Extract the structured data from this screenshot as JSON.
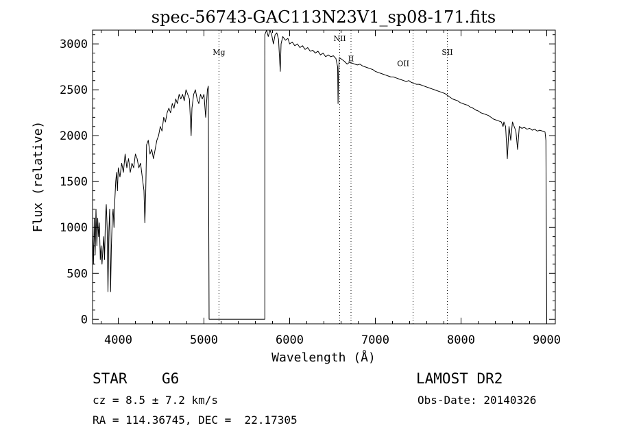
{
  "chart_data": {
    "type": "line",
    "title": "spec-56743-GAC113N23V1_sp08-171.fits",
    "xlabel": "Wavelength (Å)",
    "ylabel": "Flux (relative)",
    "xlim": [
      3700,
      9100
    ],
    "ylim": [
      -50,
      3150
    ],
    "xticks": [
      4000,
      5000,
      6000,
      7000,
      8000,
      9000
    ],
    "yticks": [
      0,
      500,
      1000,
      1500,
      2000,
      2500,
      3000
    ],
    "grid": false,
    "series": [
      {
        "points": [
          [
            3700,
            0
          ],
          [
            3700,
            1000
          ],
          [
            3710,
            600
          ],
          [
            3720,
            1100
          ],
          [
            3730,
            700
          ],
          [
            3740,
            1200
          ],
          [
            3750,
            800
          ],
          [
            3760,
            1100
          ],
          [
            3770,
            900
          ],
          [
            3780,
            1050
          ],
          [
            3790,
            650
          ],
          [
            3800,
            800
          ],
          [
            3810,
            600
          ],
          [
            3820,
            750
          ],
          [
            3830,
            900
          ],
          [
            3840,
            650
          ],
          [
            3850,
            1100
          ],
          [
            3860,
            1250
          ],
          [
            3870,
            1000
          ],
          [
            3880,
            300
          ],
          [
            3890,
            950
          ],
          [
            3900,
            1200
          ],
          [
            3910,
            300
          ],
          [
            3920,
            800
          ],
          [
            3930,
            1100
          ],
          [
            3940,
            1200
          ],
          [
            3950,
            1000
          ],
          [
            3960,
            1300
          ],
          [
            3970,
            1500
          ],
          [
            3980,
            1600
          ],
          [
            3990,
            1400
          ],
          [
            4000,
            1650
          ],
          [
            4020,
            1550
          ],
          [
            4040,
            1700
          ],
          [
            4060,
            1600
          ],
          [
            4080,
            1800
          ],
          [
            4100,
            1650
          ],
          [
            4120,
            1750
          ],
          [
            4140,
            1600
          ],
          [
            4160,
            1700
          ],
          [
            4180,
            1650
          ],
          [
            4200,
            1800
          ],
          [
            4220,
            1750
          ],
          [
            4240,
            1650
          ],
          [
            4260,
            1700
          ],
          [
            4280,
            1550
          ],
          [
            4300,
            1400
          ],
          [
            4310,
            1050
          ],
          [
            4320,
            1350
          ],
          [
            4330,
            1900
          ],
          [
            4350,
            1950
          ],
          [
            4370,
            1800
          ],
          [
            4390,
            1850
          ],
          [
            4410,
            1750
          ],
          [
            4430,
            1850
          ],
          [
            4450,
            1950
          ],
          [
            4470,
            2000
          ],
          [
            4490,
            2100
          ],
          [
            4510,
            2050
          ],
          [
            4530,
            2200
          ],
          [
            4550,
            2150
          ],
          [
            4570,
            2250
          ],
          [
            4590,
            2300
          ],
          [
            4610,
            2250
          ],
          [
            4630,
            2350
          ],
          [
            4650,
            2300
          ],
          [
            4670,
            2400
          ],
          [
            4690,
            2350
          ],
          [
            4710,
            2450
          ],
          [
            4730,
            2400
          ],
          [
            4750,
            2450
          ],
          [
            4770,
            2380
          ],
          [
            4790,
            2500
          ],
          [
            4810,
            2450
          ],
          [
            4830,
            2400
          ],
          [
            4850,
            2000
          ],
          [
            4860,
            2300
          ],
          [
            4880,
            2450
          ],
          [
            4900,
            2500
          ],
          [
            4920,
            2400
          ],
          [
            4940,
            2350
          ],
          [
            4960,
            2450
          ],
          [
            4980,
            2400
          ],
          [
            5000,
            2450
          ],
          [
            5020,
            2200
          ],
          [
            5040,
            2500
          ],
          [
            5050,
            2540
          ],
          [
            5060,
            0
          ],
          [
            5710,
            0
          ],
          [
            5710,
            3100
          ],
          [
            5730,
            3150
          ],
          [
            5750,
            3080
          ],
          [
            5770,
            3150
          ],
          [
            5790,
            3100
          ],
          [
            5810,
            3000
          ],
          [
            5830,
            3100
          ],
          [
            5850,
            3120
          ],
          [
            5870,
            3050
          ],
          [
            5890,
            2700
          ],
          [
            5900,
            3000
          ],
          [
            5920,
            3080
          ],
          [
            5950,
            3040
          ],
          [
            5980,
            3060
          ],
          [
            6000,
            3000
          ],
          [
            6030,
            3020
          ],
          [
            6060,
            2980
          ],
          [
            6090,
            3000
          ],
          [
            6120,
            2960
          ],
          [
            6150,
            2980
          ],
          [
            6180,
            2940
          ],
          [
            6210,
            2960
          ],
          [
            6240,
            2920
          ],
          [
            6270,
            2930
          ],
          [
            6300,
            2900
          ],
          [
            6330,
            2920
          ],
          [
            6360,
            2880
          ],
          [
            6390,
            2900
          ],
          [
            6420,
            2860
          ],
          [
            6450,
            2880
          ],
          [
            6480,
            2860
          ],
          [
            6510,
            2870
          ],
          [
            6540,
            2840
          ],
          [
            6560,
            2750
          ],
          [
            6565,
            2350
          ],
          [
            6570,
            2700
          ],
          [
            6580,
            2850
          ],
          [
            6610,
            2830
          ],
          [
            6640,
            2810
          ],
          [
            6670,
            2780
          ],
          [
            6700,
            2800
          ],
          [
            6730,
            2790
          ],
          [
            6760,
            2780
          ],
          [
            6790,
            2770
          ],
          [
            6820,
            2780
          ],
          [
            6850,
            2760
          ],
          [
            6880,
            2750
          ],
          [
            6910,
            2740
          ],
          [
            6940,
            2730
          ],
          [
            6970,
            2720
          ],
          [
            7000,
            2700
          ],
          [
            7030,
            2690
          ],
          [
            7060,
            2680
          ],
          [
            7090,
            2670
          ],
          [
            7120,
            2660
          ],
          [
            7150,
            2650
          ],
          [
            7180,
            2640
          ],
          [
            7210,
            2640
          ],
          [
            7240,
            2630
          ],
          [
            7270,
            2620
          ],
          [
            7300,
            2610
          ],
          [
            7330,
            2600
          ],
          [
            7360,
            2590
          ],
          [
            7390,
            2600
          ],
          [
            7420,
            2580
          ],
          [
            7450,
            2570
          ],
          [
            7480,
            2560
          ],
          [
            7510,
            2560
          ],
          [
            7540,
            2550
          ],
          [
            7570,
            2540
          ],
          [
            7600,
            2530
          ],
          [
            7630,
            2520
          ],
          [
            7660,
            2510
          ],
          [
            7690,
            2500
          ],
          [
            7720,
            2490
          ],
          [
            7750,
            2480
          ],
          [
            7780,
            2470
          ],
          [
            7810,
            2460
          ],
          [
            7840,
            2440
          ],
          [
            7870,
            2420
          ],
          [
            7900,
            2400
          ],
          [
            7930,
            2390
          ],
          [
            7960,
            2380
          ],
          [
            7990,
            2360
          ],
          [
            8020,
            2350
          ],
          [
            8050,
            2340
          ],
          [
            8080,
            2330
          ],
          [
            8110,
            2310
          ],
          [
            8140,
            2300
          ],
          [
            8170,
            2280
          ],
          [
            8200,
            2270
          ],
          [
            8230,
            2250
          ],
          [
            8260,
            2240
          ],
          [
            8290,
            2230
          ],
          [
            8320,
            2220
          ],
          [
            8350,
            2200
          ],
          [
            8380,
            2180
          ],
          [
            8410,
            2170
          ],
          [
            8440,
            2160
          ],
          [
            8470,
            2150
          ],
          [
            8490,
            2100
          ],
          [
            8500,
            2150
          ],
          [
            8520,
            2100
          ],
          [
            8540,
            1750
          ],
          [
            8560,
            2100
          ],
          [
            8580,
            1950
          ],
          [
            8600,
            2150
          ],
          [
            8620,
            2100
          ],
          [
            8640,
            2050
          ],
          [
            8660,
            1850
          ],
          [
            8680,
            2100
          ],
          [
            8710,
            2080
          ],
          [
            8740,
            2090
          ],
          [
            8770,
            2070
          ],
          [
            8800,
            2080
          ],
          [
            8830,
            2060
          ],
          [
            8860,
            2070
          ],
          [
            8890,
            2050
          ],
          [
            8920,
            2060
          ],
          [
            8950,
            2050
          ],
          [
            8980,
            2040
          ],
          [
            8990,
            1950
          ],
          [
            9000,
            0
          ]
        ]
      }
    ],
    "markers": [
      {
        "label": "Mg",
        "x": 5175,
        "label_y": 2880
      },
      {
        "label": "NII",
        "x": 6584,
        "label_y": 3030
      },
      {
        "label": "II",
        "x": 6716,
        "label_y": 2810
      },
      {
        "label": "OII",
        "x": 7325,
        "label_y": 2760,
        "line_x": 7440
      },
      {
        "label": "SII",
        "x": 7840,
        "label_y": 2880
      }
    ]
  },
  "info": {
    "object_type": "STAR",
    "subclass": "G6",
    "survey": "LAMOST DR2",
    "velocity": "cz = 8.5 ± 7.2 km/s",
    "obs_date": "Obs-Date: 20140326",
    "coords": "RA = 114.36745, DEC =  22.17305"
  }
}
